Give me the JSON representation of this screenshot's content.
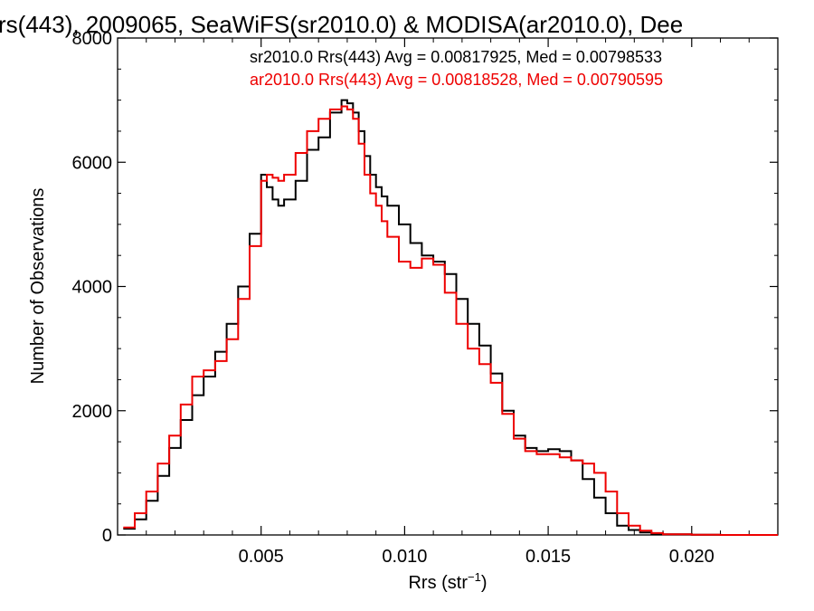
{
  "chart_data": {
    "type": "line",
    "title": "rs(443), 2009065, SeaWiFS(sr2010.0) & MODISA(ar2010.0), Dee",
    "xlabel_main": "Rrs (str",
    "xlabel_sup": "−1",
    "xlabel_close": ")",
    "ylabel": "Number of Observations",
    "xlim": [
      0.0,
      0.023
    ],
    "ylim": [
      0,
      8000
    ],
    "xticks": [
      {
        "value": 0.005,
        "label": "0.005"
      },
      {
        "value": 0.01,
        "label": "0.010"
      },
      {
        "value": 0.015,
        "label": "0.015"
      },
      {
        "value": 0.02,
        "label": "0.020"
      }
    ],
    "yticks": [
      {
        "value": 0,
        "label": "0"
      },
      {
        "value": 2000,
        "label": "2000"
      },
      {
        "value": 4000,
        "label": "4000"
      },
      {
        "value": 6000,
        "label": "6000"
      },
      {
        "value": 8000,
        "label": "8000"
      }
    ],
    "legend_placement": "top-right",
    "series": [
      {
        "name": "sr2010.0 Rrs(443) Avg = 0.00817925, Med = 0.00798533",
        "color": "#000000",
        "x": [
          0.0002,
          0.0006,
          0.001,
          0.0014,
          0.0018,
          0.0022,
          0.0026,
          0.003,
          0.0034,
          0.0038,
          0.0042,
          0.0046,
          0.005,
          0.0052,
          0.0054,
          0.0056,
          0.0058,
          0.0062,
          0.0066,
          0.007,
          0.0074,
          0.0078,
          0.008,
          0.0082,
          0.0084,
          0.0086,
          0.0088,
          0.009,
          0.0092,
          0.0094,
          0.0098,
          0.0102,
          0.0106,
          0.011,
          0.0114,
          0.0118,
          0.0122,
          0.0126,
          0.013,
          0.0134,
          0.0138,
          0.0142,
          0.0146,
          0.015,
          0.0154,
          0.0158,
          0.0162,
          0.0166,
          0.017,
          0.0174,
          0.0178,
          0.0182,
          0.0186,
          0.019,
          0.02,
          0.021,
          0.022,
          0.023
        ],
        "y": [
          100,
          250,
          550,
          950,
          1400,
          1850,
          2250,
          2550,
          2950,
          3400,
          4000,
          4850,
          5800,
          5600,
          5400,
          5300,
          5400,
          5700,
          6200,
          6400,
          6800,
          7000,
          6950,
          6800,
          6500,
          6100,
          5800,
          5600,
          5450,
          5300,
          5000,
          4700,
          4500,
          4400,
          4200,
          3800,
          3400,
          3050,
          2600,
          2000,
          1600,
          1400,
          1350,
          1380,
          1350,
          1200,
          900,
          600,
          350,
          150,
          80,
          40,
          20,
          10,
          5,
          0,
          0,
          0
        ]
      },
      {
        "name": "ar2010.0 Rrs(443) Avg = 0.00818528, Med = 0.00790595",
        "color": "#ee0000",
        "x": [
          0.0002,
          0.0006,
          0.001,
          0.0014,
          0.0018,
          0.0022,
          0.0026,
          0.003,
          0.0034,
          0.0038,
          0.0042,
          0.0046,
          0.005,
          0.0052,
          0.0054,
          0.0056,
          0.0058,
          0.0062,
          0.0066,
          0.007,
          0.0074,
          0.0078,
          0.008,
          0.0082,
          0.0084,
          0.0086,
          0.0088,
          0.009,
          0.0092,
          0.0094,
          0.0098,
          0.0102,
          0.0106,
          0.011,
          0.0114,
          0.0118,
          0.0122,
          0.0126,
          0.013,
          0.0134,
          0.0138,
          0.0142,
          0.0146,
          0.015,
          0.0154,
          0.0158,
          0.0162,
          0.0166,
          0.017,
          0.0174,
          0.0178,
          0.0182,
          0.0186,
          0.019,
          0.02,
          0.021,
          0.022,
          0.023
        ],
        "y": [
          120,
          350,
          700,
          1150,
          1600,
          2100,
          2550,
          2650,
          2800,
          3150,
          3800,
          4650,
          5700,
          5800,
          5750,
          5700,
          5800,
          6150,
          6500,
          6700,
          6850,
          6900,
          6850,
          6700,
          6300,
          5800,
          5500,
          5300,
          5050,
          4800,
          4400,
          4300,
          4450,
          4350,
          3900,
          3400,
          3000,
          2750,
          2450,
          1950,
          1550,
          1350,
          1300,
          1300,
          1250,
          1200,
          1150,
          1000,
          700,
          350,
          150,
          70,
          30,
          10,
          5,
          0,
          0,
          0
        ]
      }
    ]
  }
}
